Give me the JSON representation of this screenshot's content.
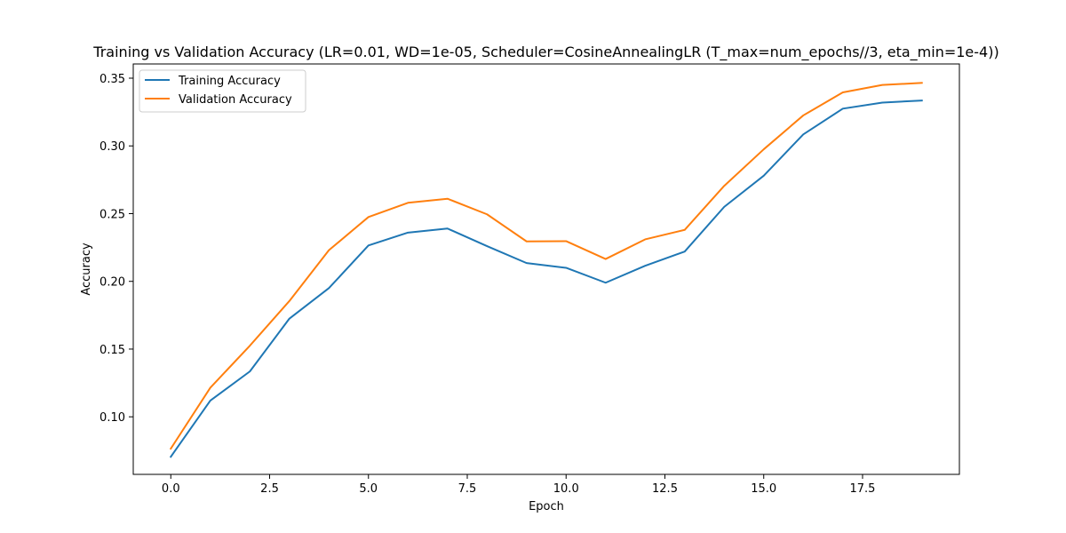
{
  "chart_data": {
    "type": "line",
    "title": "Training vs Validation Accuracy (LR=0.01, WD=1e-05, Scheduler=CosineAnnealingLR (T_max=num_epochs//3, eta_min=1e-4))",
    "xlabel": "Epoch",
    "ylabel": "Accuracy",
    "xlim": [
      -0.95,
      19.95
    ],
    "ylim": [
      0.0575,
      0.3605
    ],
    "xticks": [
      0.0,
      2.5,
      5.0,
      7.5,
      10.0,
      12.5,
      15.0,
      17.5
    ],
    "xtick_labels": [
      "0.0",
      "2.5",
      "5.0",
      "7.5",
      "10.0",
      "12.5",
      "15.0",
      "17.5"
    ],
    "yticks": [
      0.1,
      0.15,
      0.2,
      0.25,
      0.3,
      0.35
    ],
    "ytick_labels": [
      "0.10",
      "0.15",
      "0.20",
      "0.25",
      "0.30",
      "0.35"
    ],
    "grid": false,
    "legend_position": "top-left",
    "x": [
      0,
      1,
      2,
      3,
      4,
      5,
      6,
      7,
      8,
      9,
      10,
      11,
      12,
      13,
      14,
      15,
      16,
      17,
      18,
      19
    ],
    "series": [
      {
        "name": "Training Accuracy",
        "color": "#1f77b4",
        "values": [
          0.0705,
          0.112,
          0.1335,
          0.1725,
          0.195,
          0.2265,
          0.236,
          0.239,
          0.226,
          0.2135,
          0.21,
          0.199,
          0.2115,
          0.222,
          0.255,
          0.278,
          0.3085,
          0.3275,
          0.332,
          0.3335
        ]
      },
      {
        "name": "Validation Accuracy",
        "color": "#ff7f0e",
        "values": [
          0.0765,
          0.1215,
          0.1525,
          0.1855,
          0.223,
          0.2475,
          0.258,
          0.261,
          0.2495,
          0.2295,
          0.2297,
          0.2165,
          0.231,
          0.238,
          0.2705,
          0.2975,
          0.3225,
          0.3395,
          0.345,
          0.3465
        ]
      }
    ]
  }
}
